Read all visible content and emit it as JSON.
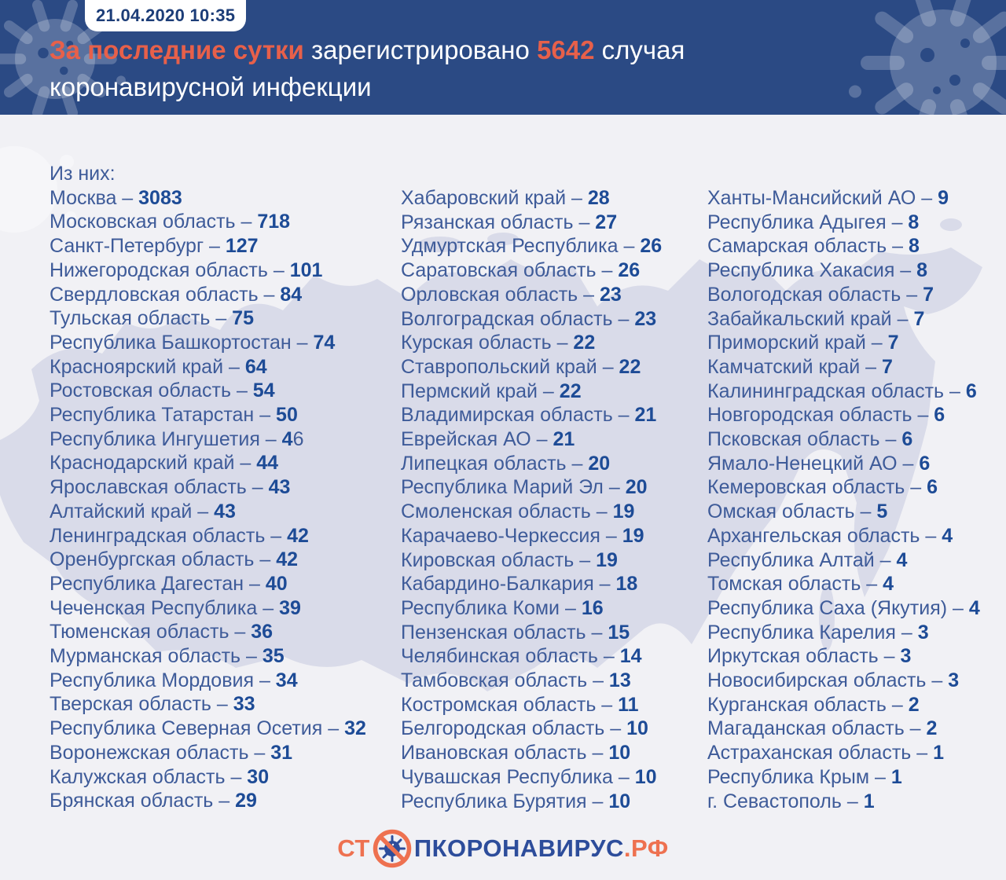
{
  "header": {
    "timestamp": "21.04.2020 10:35",
    "title_line1": [
      {
        "text": "За последние сутки",
        "style": "accent"
      },
      {
        "text": " зарегистрировано ",
        "style": "normal"
      },
      {
        "text": "5642",
        "style": "accent"
      },
      {
        "text": " случая",
        "style": "normal"
      }
    ],
    "title_line2": "коронавирусной инфекции"
  },
  "list_intro": "Из них:",
  "separator": " – ",
  "column_sizes": [
    26,
    26,
    26
  ],
  "footer": {
    "logo_prefix": "СТ",
    "logo_icon": "no-virus-icon",
    "logo_middle": "ПКОРОНАВИРУС",
    "logo_suffix": ".РФ"
  },
  "colors": {
    "header_bg": "#2b4a84",
    "accent": "#e7604a",
    "content_bg": "#f1f1f5",
    "map_fill": "#d9dbe9",
    "label_blue": "#3e5b99",
    "value_blue": "#1d4b96",
    "badge_text": "#1c3d78",
    "logo_blue": "#2d4d9b",
    "logo_orange": "#ee7150"
  },
  "chart_data": {
    "type": "table",
    "title": "За последние сутки зарегистрировано 5642 случая коронавирусной инфекции",
    "timestamp": "21.04.2020 10:35",
    "total_new_cases": 5642,
    "regions": [
      {
        "region": "Москва",
        "cases": 3083
      },
      {
        "region": "Московская область",
        "cases": 718
      },
      {
        "region": "Санкт-Петербург",
        "cases": 127
      },
      {
        "region": "Нижегородская область",
        "cases": 101
      },
      {
        "region": "Свердловская область",
        "cases": 84
      },
      {
        "region": "Тульская область",
        "cases": 75
      },
      {
        "region": "Республика Башкортостан",
        "cases": 74
      },
      {
        "region": "Красноярский край",
        "cases": 64
      },
      {
        "region": "Ростовская область",
        "cases": 54
      },
      {
        "region": "Республика Татарстан",
        "cases": 50
      },
      {
        "region": "Республика Ингушетия",
        "cases": 46,
        "value_display": {
          "bold": "4",
          "regular": "6"
        }
      },
      {
        "region": "Краснодарский край",
        "cases": 44
      },
      {
        "region": "Ярославская область",
        "cases": 43
      },
      {
        "region": "Алтайский край",
        "cases": 43
      },
      {
        "region": "Ленинградская область",
        "cases": 42
      },
      {
        "region": "Оренбургская область",
        "cases": 42
      },
      {
        "region": "Республика Дагестан",
        "cases": 40
      },
      {
        "region": "Чеченская Республика",
        "cases": 39
      },
      {
        "region": "Тюменская область",
        "cases": 36
      },
      {
        "region": "Мурманская область",
        "cases": 35
      },
      {
        "region": "Республика Мордовия",
        "cases": 34
      },
      {
        "region": "Тверская область",
        "cases": 33
      },
      {
        "region": "Республика Северная Осетия",
        "cases": 32
      },
      {
        "region": "Воронежская область",
        "cases": 31
      },
      {
        "region": "Калужская область",
        "cases": 30
      },
      {
        "region": "Брянская область",
        "cases": 29
      },
      {
        "region": "Хабаровский край",
        "cases": 28
      },
      {
        "region": "Рязанская область",
        "cases": 27
      },
      {
        "region": "Удмуртская Республика",
        "cases": 26
      },
      {
        "region": "Саратовская область",
        "cases": 26
      },
      {
        "region": "Орловская область",
        "cases": 23
      },
      {
        "region": "Волгоградская область",
        "cases": 23
      },
      {
        "region": "Курская область",
        "cases": 22
      },
      {
        "region": "Ставропольский край",
        "cases": 22
      },
      {
        "region": "Пермский край",
        "cases": 22
      },
      {
        "region": "Владимирская область",
        "cases": 21
      },
      {
        "region": "Еврейская АО",
        "cases": 21
      },
      {
        "region": "Липецкая область",
        "cases": 20
      },
      {
        "region": "Республика Марий Эл",
        "cases": 20
      },
      {
        "region": "Смоленская область",
        "cases": 19
      },
      {
        "region": "Карачаево-Черкессия",
        "cases": 19
      },
      {
        "region": "Кировская область",
        "cases": 19
      },
      {
        "region": "Кабардино-Балкария",
        "cases": 18
      },
      {
        "region": "Республика Коми",
        "cases": 16
      },
      {
        "region": "Пензенская область",
        "cases": 15
      },
      {
        "region": "Челябинская область",
        "cases": 14
      },
      {
        "region": "Тамбовская область",
        "cases": 13
      },
      {
        "region": "Костромская область",
        "cases": 11
      },
      {
        "region": "Белгородская область",
        "cases": 10
      },
      {
        "region": "Ивановская область",
        "cases": 10
      },
      {
        "region": "Чувашская Республика",
        "cases": 10
      },
      {
        "region": "Республика Бурятия",
        "cases": 10
      },
      {
        "region": "Ханты-Мансийский АО",
        "cases": 9
      },
      {
        "region": "Республика Адыгея",
        "cases": 8
      },
      {
        "region": "Самарская область",
        "cases": 8
      },
      {
        "region": "Республика Хакасия",
        "cases": 8
      },
      {
        "region": "Вологодская область",
        "cases": 7
      },
      {
        "region": "Забайкальский край",
        "cases": 7
      },
      {
        "region": "Приморский край",
        "cases": 7
      },
      {
        "region": "Камчатский край",
        "cases": 7
      },
      {
        "region": "Калининградская область",
        "cases": 6
      },
      {
        "region": "Новгородская область",
        "cases": 6
      },
      {
        "region": "Псковская область",
        "cases": 6
      },
      {
        "region": "Ямало-Ненецкий АО",
        "cases": 6
      },
      {
        "region": "Кемеровская область",
        "cases": 6
      },
      {
        "region": "Омская область",
        "cases": 5
      },
      {
        "region": "Архангельская область",
        "cases": 4
      },
      {
        "region": "Республика Алтай",
        "cases": 4
      },
      {
        "region": "Томская область",
        "cases": 4
      },
      {
        "region": "Республика Саха (Якутия)",
        "cases": 4
      },
      {
        "region": "Республика Карелия",
        "cases": 3
      },
      {
        "region": "Иркутская область",
        "cases": 3
      },
      {
        "region": "Новосибирская область",
        "cases": 3
      },
      {
        "region": "Курганская область",
        "cases": 2
      },
      {
        "region": "Магаданская область",
        "cases": 2
      },
      {
        "region": "Астраханская область",
        "cases": 1
      },
      {
        "region": "Республика Крым",
        "cases": 1
      },
      {
        "region": "г. Севастополь",
        "cases": 1
      }
    ]
  }
}
